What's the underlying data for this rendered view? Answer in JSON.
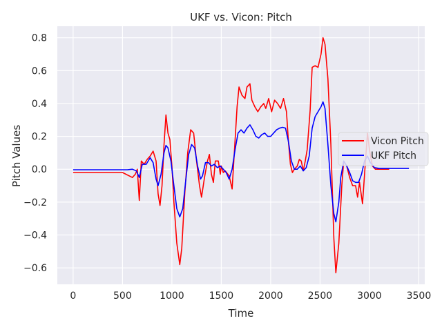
{
  "chart_data": {
    "type": "line",
    "title": "UKF vs. Vicon: Pitch",
    "xlabel": "Time",
    "ylabel": "Pitch Values",
    "xlim": [
      -160,
      3560
    ],
    "ylim": [
      -0.7,
      0.87
    ],
    "xticks": [
      0,
      500,
      1000,
      1500,
      2000,
      2500,
      3000,
      3500
    ],
    "xtick_labels": [
      "0",
      "500",
      "1000",
      "1500",
      "2000",
      "2500",
      "3000",
      "3500"
    ],
    "yticks": [
      -0.6,
      -0.4,
      -0.2,
      0.0,
      0.2,
      0.4,
      0.6,
      0.8
    ],
    "ytick_labels": [
      "−0.6",
      "−0.4",
      "−0.2",
      "0.0",
      "0.2",
      "0.4",
      "0.6",
      "0.8"
    ],
    "grid": true,
    "legend": {
      "position": "center-right"
    },
    "series": [
      {
        "name": "Vicon Pitch",
        "color": "#ff0000",
        "points": [
          [
            0,
            -0.02
          ],
          [
            400,
            -0.02
          ],
          [
            500,
            -0.02
          ],
          [
            600,
            -0.05
          ],
          [
            630,
            -0.03
          ],
          [
            650,
            0.0
          ],
          [
            670,
            -0.19
          ],
          [
            690,
            0.05
          ],
          [
            720,
            0.03
          ],
          [
            750,
            0.06
          ],
          [
            780,
            0.08
          ],
          [
            810,
            0.11
          ],
          [
            840,
            0.05
          ],
          [
            860,
            -0.15
          ],
          [
            880,
            -0.22
          ],
          [
            900,
            -0.1
          ],
          [
            920,
            0.15
          ],
          [
            940,
            0.33
          ],
          [
            960,
            0.22
          ],
          [
            980,
            0.18
          ],
          [
            1000,
            0.02
          ],
          [
            1020,
            -0.2
          ],
          [
            1050,
            -0.45
          ],
          [
            1080,
            -0.58
          ],
          [
            1100,
            -0.48
          ],
          [
            1130,
            -0.15
          ],
          [
            1160,
            0.1
          ],
          [
            1190,
            0.24
          ],
          [
            1220,
            0.22
          ],
          [
            1250,
            0.05
          ],
          [
            1280,
            -0.1
          ],
          [
            1300,
            -0.17
          ],
          [
            1330,
            -0.05
          ],
          [
            1360,
            0.05
          ],
          [
            1380,
            0.09
          ],
          [
            1400,
            -0.03
          ],
          [
            1420,
            -0.08
          ],
          [
            1440,
            0.05
          ],
          [
            1470,
            0.05
          ],
          [
            1490,
            -0.03
          ],
          [
            1500,
            0.02
          ],
          [
            1520,
            -0.02
          ],
          [
            1540,
            -0.01
          ],
          [
            1580,
            -0.04
          ],
          [
            1610,
            -0.12
          ],
          [
            1630,
            0.08
          ],
          [
            1660,
            0.38
          ],
          [
            1680,
            0.5
          ],
          [
            1710,
            0.45
          ],
          [
            1740,
            0.43
          ],
          [
            1760,
            0.5
          ],
          [
            1790,
            0.52
          ],
          [
            1810,
            0.42
          ],
          [
            1840,
            0.38
          ],
          [
            1870,
            0.35
          ],
          [
            1900,
            0.38
          ],
          [
            1930,
            0.4
          ],
          [
            1950,
            0.37
          ],
          [
            1980,
            0.43
          ],
          [
            2010,
            0.35
          ],
          [
            2040,
            0.42
          ],
          [
            2070,
            0.4
          ],
          [
            2100,
            0.37
          ],
          [
            2130,
            0.43
          ],
          [
            2160,
            0.35
          ],
          [
            2180,
            0.17
          ],
          [
            2200,
            0.03
          ],
          [
            2220,
            -0.02
          ],
          [
            2240,
            0.0
          ],
          [
            2270,
            0.02
          ],
          [
            2290,
            0.06
          ],
          [
            2310,
            0.05
          ],
          [
            2330,
            -0.01
          ],
          [
            2350,
            0.05
          ],
          [
            2370,
            0.12
          ],
          [
            2400,
            0.36
          ],
          [
            2420,
            0.62
          ],
          [
            2450,
            0.63
          ],
          [
            2480,
            0.62
          ],
          [
            2510,
            0.7
          ],
          [
            2530,
            0.8
          ],
          [
            2550,
            0.76
          ],
          [
            2580,
            0.55
          ],
          [
            2610,
            0.15
          ],
          [
            2640,
            -0.42
          ],
          [
            2660,
            -0.63
          ],
          [
            2690,
            -0.45
          ],
          [
            2720,
            -0.1
          ],
          [
            2740,
            0.05
          ],
          [
            2770,
            0.02
          ],
          [
            2800,
            -0.05
          ],
          [
            2830,
            -0.1
          ],
          [
            2860,
            -0.1
          ],
          [
            2880,
            -0.17
          ],
          [
            2900,
            -0.08
          ],
          [
            2930,
            -0.21
          ],
          [
            2960,
            0.05
          ],
          [
            2980,
            0.22
          ],
          [
            3000,
            0.12
          ],
          [
            3030,
            0.02
          ],
          [
            3060,
            0.0
          ],
          [
            3200,
            0.0
          ]
        ]
      },
      {
        "name": "UKF Pitch",
        "color": "#0000ff",
        "points": [
          [
            0,
            -0.003
          ],
          [
            200,
            -0.003
          ],
          [
            400,
            -0.003
          ],
          [
            550,
            -0.003
          ],
          [
            600,
            0.0
          ],
          [
            640,
            -0.01
          ],
          [
            670,
            -0.05
          ],
          [
            700,
            0.03
          ],
          [
            740,
            0.03
          ],
          [
            780,
            0.07
          ],
          [
            810,
            0.04
          ],
          [
            840,
            -0.06
          ],
          [
            860,
            -0.1
          ],
          [
            890,
            -0.03
          ],
          [
            920,
            0.1
          ],
          [
            940,
            0.145
          ],
          [
            960,
            0.13
          ],
          [
            990,
            0.05
          ],
          [
            1020,
            -0.1
          ],
          [
            1050,
            -0.24
          ],
          [
            1080,
            -0.29
          ],
          [
            1110,
            -0.24
          ],
          [
            1140,
            -0.07
          ],
          [
            1170,
            0.09
          ],
          [
            1200,
            0.15
          ],
          [
            1230,
            0.13
          ],
          [
            1260,
            0.02
          ],
          [
            1290,
            -0.06
          ],
          [
            1310,
            -0.04
          ],
          [
            1340,
            0.04
          ],
          [
            1370,
            0.04
          ],
          [
            1400,
            0.02
          ],
          [
            1430,
            0.03
          ],
          [
            1460,
            0.01
          ],
          [
            1490,
            0.02
          ],
          [
            1520,
            0.0
          ],
          [
            1550,
            -0.02
          ],
          [
            1580,
            -0.06
          ],
          [
            1610,
            0.0
          ],
          [
            1640,
            0.12
          ],
          [
            1670,
            0.22
          ],
          [
            1700,
            0.24
          ],
          [
            1730,
            0.22
          ],
          [
            1760,
            0.25
          ],
          [
            1790,
            0.27
          ],
          [
            1820,
            0.24
          ],
          [
            1850,
            0.2
          ],
          [
            1880,
            0.19
          ],
          [
            1910,
            0.21
          ],
          [
            1940,
            0.22
          ],
          [
            1970,
            0.2
          ],
          [
            2000,
            0.2
          ],
          [
            2030,
            0.22
          ],
          [
            2060,
            0.24
          ],
          [
            2090,
            0.25
          ],
          [
            2120,
            0.255
          ],
          [
            2150,
            0.25
          ],
          [
            2180,
            0.17
          ],
          [
            2210,
            0.05
          ],
          [
            2240,
            0.0
          ],
          [
            2270,
            0.0
          ],
          [
            2300,
            0.02
          ],
          [
            2330,
            -0.01
          ],
          [
            2360,
            0.01
          ],
          [
            2390,
            0.08
          ],
          [
            2420,
            0.25
          ],
          [
            2450,
            0.32
          ],
          [
            2480,
            0.35
          ],
          [
            2510,
            0.38
          ],
          [
            2530,
            0.41
          ],
          [
            2550,
            0.37
          ],
          [
            2580,
            0.15
          ],
          [
            2610,
            -0.1
          ],
          [
            2640,
            -0.27
          ],
          [
            2660,
            -0.32
          ],
          [
            2690,
            -0.2
          ],
          [
            2710,
            -0.05
          ],
          [
            2740,
            0.05
          ],
          [
            2770,
            0.02
          ],
          [
            2800,
            -0.02
          ],
          [
            2830,
            -0.07
          ],
          [
            2860,
            -0.08
          ],
          [
            2890,
            -0.08
          ],
          [
            2920,
            -0.03
          ],
          [
            2950,
            0.05
          ],
          [
            2980,
            0.08
          ],
          [
            3010,
            0.04
          ],
          [
            3050,
            0.01
          ],
          [
            3100,
            0.005
          ],
          [
            3400,
            0.005
          ]
        ]
      }
    ]
  }
}
